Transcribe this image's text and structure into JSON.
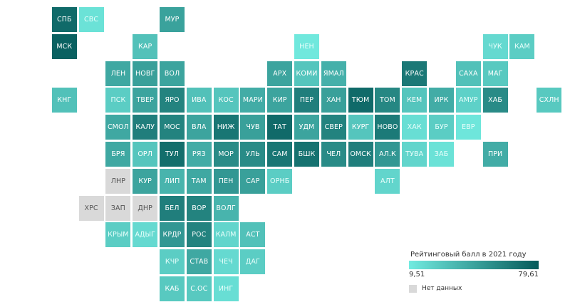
{
  "chart_data": {
    "type": "tile_map",
    "legend": {
      "title": "Рейтинговый балл в 2021 году",
      "min": "9,51",
      "max": "79,61",
      "min_value": 9.51,
      "max_value": 79.61,
      "no_data_label": "Нет данных",
      "color_low": "#72ebe0",
      "color_high": "#045a5a",
      "color_no_data": "#d9d9d9"
    },
    "regions": [
      {
        "label": "СПБ",
        "col": 1,
        "row": 0,
        "value": 72
      },
      {
        "label": "СВС",
        "col": 2,
        "row": 0,
        "value": 14
      },
      {
        "label": "МУР",
        "col": 5,
        "row": 0,
        "value": 45
      },
      {
        "label": "МСК",
        "col": 1,
        "row": 1,
        "value": 76
      },
      {
        "label": "КАР",
        "col": 4,
        "row": 1,
        "value": 30
      },
      {
        "label": "НЕН",
        "col": 10,
        "row": 1,
        "value": 11
      },
      {
        "label": "ЧУК",
        "col": 17,
        "row": 1,
        "value": 18
      },
      {
        "label": "КАМ",
        "col": 18,
        "row": 1,
        "value": 24
      },
      {
        "label": "ЛЕН",
        "col": 3,
        "row": 2,
        "value": 42
      },
      {
        "label": "НОВГ",
        "col": 4,
        "row": 2,
        "value": 46
      },
      {
        "label": "ВОЛ",
        "col": 5,
        "row": 2,
        "value": 44
      },
      {
        "label": "АРХ",
        "col": 9,
        "row": 2,
        "value": 44
      },
      {
        "label": "КОМИ",
        "col": 10,
        "row": 2,
        "value": 28
      },
      {
        "label": "ЯМАЛ",
        "col": 11,
        "row": 2,
        "value": 38
      },
      {
        "label": "КРАС",
        "col": 14,
        "row": 2,
        "value": 65
      },
      {
        "label": "САХА",
        "col": 16,
        "row": 2,
        "value": 30
      },
      {
        "label": "МАГ",
        "col": 17,
        "row": 2,
        "value": 26
      },
      {
        "label": "КНГ",
        "col": 1,
        "row": 3,
        "value": 30
      },
      {
        "label": "ПСК",
        "col": 3,
        "row": 3,
        "value": 24
      },
      {
        "label": "ТВЕР",
        "col": 4,
        "row": 3,
        "value": 44
      },
      {
        "label": "ЯРО",
        "col": 5,
        "row": 3,
        "value": 60
      },
      {
        "label": "ИВА",
        "col": 6,
        "row": 3,
        "value": 30
      },
      {
        "label": "КОС",
        "col": 7,
        "row": 3,
        "value": 28
      },
      {
        "label": "МАРИ",
        "col": 8,
        "row": 3,
        "value": 40
      },
      {
        "label": "КИР",
        "col": 9,
        "row": 3,
        "value": 44
      },
      {
        "label": "ПЕР",
        "col": 10,
        "row": 3,
        "value": 62
      },
      {
        "label": "ХАН",
        "col": 11,
        "row": 3,
        "value": 46
      },
      {
        "label": "ТЮМ",
        "col": 12,
        "row": 3,
        "value": 72
      },
      {
        "label": "ТОМ",
        "col": 13,
        "row": 3,
        "value": 58
      },
      {
        "label": "КЕМ",
        "col": 14,
        "row": 3,
        "value": 28
      },
      {
        "label": "ИРК",
        "col": 15,
        "row": 3,
        "value": 40
      },
      {
        "label": "АМУР",
        "col": 16,
        "row": 3,
        "value": 22
      },
      {
        "label": "ХАБ",
        "col": 17,
        "row": 3,
        "value": 56
      },
      {
        "label": "СХЛН",
        "col": 19,
        "row": 3,
        "value": 26
      },
      {
        "label": "СМОЛ",
        "col": 3,
        "row": 4,
        "value": 42
      },
      {
        "label": "КАЛУ",
        "col": 4,
        "row": 4,
        "value": 62
      },
      {
        "label": "МОС",
        "col": 5,
        "row": 4,
        "value": 60
      },
      {
        "label": "ВЛА",
        "col": 6,
        "row": 4,
        "value": 44
      },
      {
        "label": "НИЖ",
        "col": 7,
        "row": 4,
        "value": 66
      },
      {
        "label": "ЧУВ",
        "col": 8,
        "row": 4,
        "value": 46
      },
      {
        "label": "ТАТ",
        "col": 9,
        "row": 4,
        "value": 72
      },
      {
        "label": "УДМ",
        "col": 10,
        "row": 4,
        "value": 44
      },
      {
        "label": "СВЕР",
        "col": 11,
        "row": 4,
        "value": 60
      },
      {
        "label": "КУРГ",
        "col": 12,
        "row": 4,
        "value": 28
      },
      {
        "label": "НОВО",
        "col": 13,
        "row": 4,
        "value": 64
      },
      {
        "label": "ХАК",
        "col": 14,
        "row": 4,
        "value": 16
      },
      {
        "label": "БУР",
        "col": 15,
        "row": 4,
        "value": 24
      },
      {
        "label": "ЕВР",
        "col": 16,
        "row": 4,
        "value": 12
      },
      {
        "label": "БРЯ",
        "col": 3,
        "row": 5,
        "value": 42
      },
      {
        "label": "ОРЛ",
        "col": 4,
        "row": 5,
        "value": 28
      },
      {
        "label": "ТУЛ",
        "col": 5,
        "row": 5,
        "value": 70
      },
      {
        "label": "РЯЗ",
        "col": 6,
        "row": 5,
        "value": 40
      },
      {
        "label": "МОР",
        "col": 7,
        "row": 5,
        "value": 56
      },
      {
        "label": "УЛЬ",
        "col": 8,
        "row": 5,
        "value": 56
      },
      {
        "label": "САМ",
        "col": 9,
        "row": 5,
        "value": 66
      },
      {
        "label": "БШК",
        "col": 10,
        "row": 5,
        "value": 68
      },
      {
        "label": "ЧЕЛ",
        "col": 11,
        "row": 5,
        "value": 56
      },
      {
        "label": "ОМСК",
        "col": 12,
        "row": 5,
        "value": 62
      },
      {
        "label": "АЛ.К",
        "col": 13,
        "row": 5,
        "value": 50
      },
      {
        "label": "ТУВА",
        "col": 14,
        "row": 5,
        "value": 20
      },
      {
        "label": "ЗАБ",
        "col": 15,
        "row": 5,
        "value": 14
      },
      {
        "label": "ПРИ",
        "col": 17,
        "row": 5,
        "value": 40
      },
      {
        "label": "ЛНР",
        "col": 3,
        "row": 6,
        "value": null
      },
      {
        "label": "КУР",
        "col": 4,
        "row": 6,
        "value": 44
      },
      {
        "label": "ЛИП",
        "col": 5,
        "row": 6,
        "value": 36
      },
      {
        "label": "ТАМ",
        "col": 6,
        "row": 6,
        "value": 42
      },
      {
        "label": "ПЕН",
        "col": 7,
        "row": 6,
        "value": 50
      },
      {
        "label": "САР",
        "col": 8,
        "row": 6,
        "value": 46
      },
      {
        "label": "ОРНБ",
        "col": 9,
        "row": 6,
        "value": 24
      },
      {
        "label": "АЛТ",
        "col": 13,
        "row": 6,
        "value": 20
      },
      {
        "label": "ХРС",
        "col": 2,
        "row": 7,
        "value": null
      },
      {
        "label": "ЗАП",
        "col": 3,
        "row": 7,
        "value": null
      },
      {
        "label": "ДНР",
        "col": 4,
        "row": 7,
        "value": null
      },
      {
        "label": "БЕЛ",
        "col": 5,
        "row": 7,
        "value": 62
      },
      {
        "label": "ВОР",
        "col": 6,
        "row": 7,
        "value": 60
      },
      {
        "label": "ВОЛГ",
        "col": 7,
        "row": 7,
        "value": 36
      },
      {
        "label": "КРЫМ",
        "col": 3,
        "row": 8,
        "value": 24
      },
      {
        "label": "АДЫГ",
        "col": 4,
        "row": 8,
        "value": 18
      },
      {
        "label": "КРДР",
        "col": 5,
        "row": 8,
        "value": 50
      },
      {
        "label": "РОС",
        "col": 6,
        "row": 8,
        "value": 60
      },
      {
        "label": "КАЛМ",
        "col": 7,
        "row": 8,
        "value": 20
      },
      {
        "label": "АСТ",
        "col": 8,
        "row": 8,
        "value": 30
      },
      {
        "label": "КЧР",
        "col": 5,
        "row": 9,
        "value": 24
      },
      {
        "label": "СТАВ",
        "col": 6,
        "row": 9,
        "value": 42
      },
      {
        "label": "ЧЕЧ",
        "col": 7,
        "row": 9,
        "value": 18
      },
      {
        "label": "ДАГ",
        "col": 8,
        "row": 9,
        "value": 24
      },
      {
        "label": "КАБ",
        "col": 5,
        "row": 10,
        "value": 26
      },
      {
        "label": "С.ОС",
        "col": 6,
        "row": 10,
        "value": 26
      },
      {
        "label": "ИНГ",
        "col": 7,
        "row": 10,
        "value": 16
      }
    ]
  }
}
